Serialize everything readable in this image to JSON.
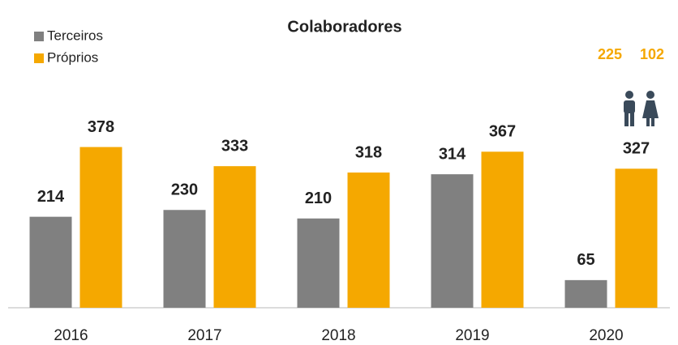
{
  "chart_data": {
    "type": "bar",
    "title": "Colaboradores",
    "categories": [
      "2016",
      "2017",
      "2018",
      "2019",
      "2020"
    ],
    "series": [
      {
        "name": "Terceiros",
        "color": "#808080",
        "values": [
          214,
          230,
          210,
          314,
          65
        ]
      },
      {
        "name": "Próprios",
        "color": "#f5a800",
        "values": [
          378,
          333,
          318,
          367,
          327
        ]
      }
    ],
    "ylim": [
      0,
      400
    ],
    "legend": "top-left",
    "annotations": [
      "225",
      "102"
    ]
  }
}
